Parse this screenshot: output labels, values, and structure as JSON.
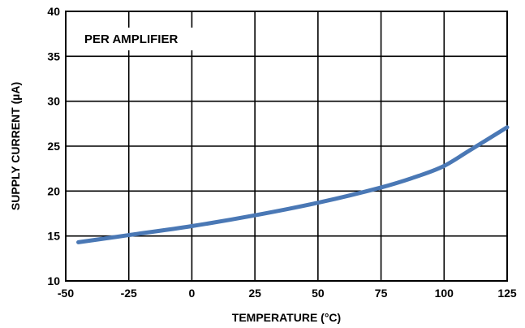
{
  "chart_data": {
    "type": "line",
    "title": "",
    "xlabel": "TEMPERATURE (°C)",
    "ylabel": "SUPPLY CURRENT (µA)",
    "annotation": "PER AMPLIFIER",
    "xlim": [
      -50,
      125
    ],
    "ylim": [
      10,
      40
    ],
    "x_ticks": [
      -50,
      -25,
      0,
      25,
      50,
      75,
      100,
      125
    ],
    "y_ticks": [
      10,
      15,
      20,
      25,
      30,
      35,
      40
    ],
    "grid": true,
    "series": [
      {
        "color": "#4a78b5",
        "x": [
          -45,
          -25,
          0,
          25,
          50,
          75,
          90,
          100,
          110,
          125
        ],
        "y": [
          14.3,
          15.1,
          16.1,
          17.3,
          18.7,
          20.4,
          21.7,
          22.8,
          24.5,
          27.1
        ]
      }
    ]
  }
}
